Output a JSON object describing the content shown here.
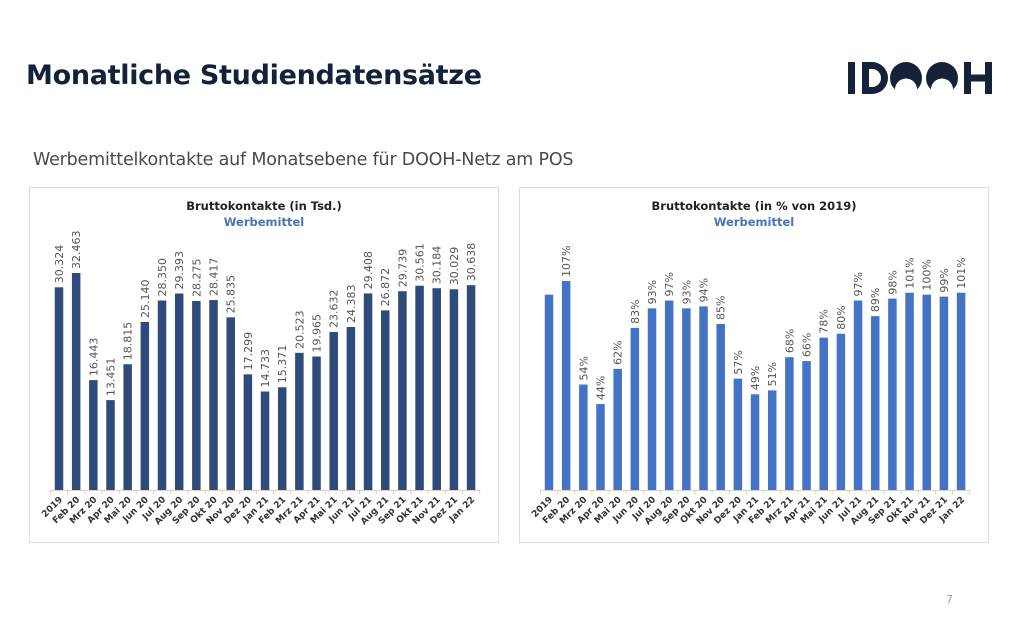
{
  "page": {
    "title": "Monatliche Studiendatensätze",
    "subtitle": "Werbemittelkontakte auf Monatsebene für DOOH-Netz am POS",
    "page_number": "7",
    "logo": {
      "text": "IDOOH",
      "color": "#16223a"
    }
  },
  "colors": {
    "left_bars": "#2f4b7c",
    "right_bars": "#4472c4",
    "chart_subtitle": "#4a72b8",
    "title": "#14213a"
  },
  "chart_data": [
    {
      "type": "bar",
      "title": "Bruttokontakte (in Tsd.)",
      "subtitle": "Werbemittel",
      "xlabel": "",
      "ylabel": "",
      "ylim": [
        0,
        35
      ],
      "grid": false,
      "legend": null,
      "categories": [
        "2019",
        "Feb 20",
        "Mrz 20",
        "Apr 20",
        "Mai 20",
        "Jun 20",
        "Jul 20",
        "Aug 20",
        "Sep 20",
        "Okt 20",
        "Nov 20",
        "Dez 20",
        "Jan 21",
        "Feb 21",
        "Mrz 21",
        "Apr 21",
        "Mai 21",
        "Jun 21",
        "Jul 21",
        "Aug 21",
        "Sep 21",
        "Okt 21",
        "Nov 21",
        "Dez 21",
        "Jan 22"
      ],
      "values": [
        30.324,
        32.463,
        16.443,
        13.451,
        18.815,
        25.14,
        28.35,
        29.393,
        28.275,
        28.417,
        25.835,
        17.299,
        14.733,
        15.371,
        20.523,
        19.965,
        23.632,
        24.383,
        29.408,
        26.872,
        29.739,
        30.561,
        30.184,
        30.029,
        30.638
      ],
      "labels": [
        "30.324",
        "32.463",
        "16.443",
        "13.451",
        "18.815",
        "25.140",
        "28.350",
        "29.393",
        "28.275",
        "28.417",
        "25.835",
        "17.299",
        "14.733",
        "15.371",
        "20.523",
        "19.965",
        "23.632",
        "24.383",
        "29.408",
        "26.872",
        "29.739",
        "30.561",
        "30.184",
        "30.029",
        "30.638"
      ]
    },
    {
      "type": "bar",
      "title": "Bruttokontakte (in % von 2019)",
      "subtitle": "Werbemittel",
      "xlabel": "",
      "ylabel": "",
      "ylim": [
        0,
        115
      ],
      "grid": false,
      "legend": null,
      "categories": [
        "2019",
        "Feb 20",
        "Mrz 20",
        "Apr 20",
        "Mai 20",
        "Jun 20",
        "Jul 20",
        "Aug 20",
        "Sep 20",
        "Okt 20",
        "Nov 20",
        "Dez 20",
        "Jan 21",
        "Feb 21",
        "Mrz 21",
        "Apr 21",
        "Mai 21",
        "Jun 21",
        "Jul 21",
        "Aug 21",
        "Sep 21",
        "Okt 21",
        "Nov 21",
        "Dez 21",
        "Jan 22"
      ],
      "values": [
        100,
        107,
        54,
        44,
        62,
        83,
        93,
        97,
        93,
        94,
        85,
        57,
        49,
        51,
        68,
        66,
        78,
        80,
        97,
        89,
        98,
        101,
        100,
        99,
        101
      ],
      "labels": [
        "",
        "107%",
        "54%",
        "44%",
        "62%",
        "83%",
        "93%",
        "97%",
        "93%",
        "94%",
        "85%",
        "57%",
        "49%",
        "51%",
        "68%",
        "66%",
        "78%",
        "80%",
        "97%",
        "89%",
        "98%",
        "101%",
        "100%",
        "99%",
        "101%"
      ]
    }
  ]
}
